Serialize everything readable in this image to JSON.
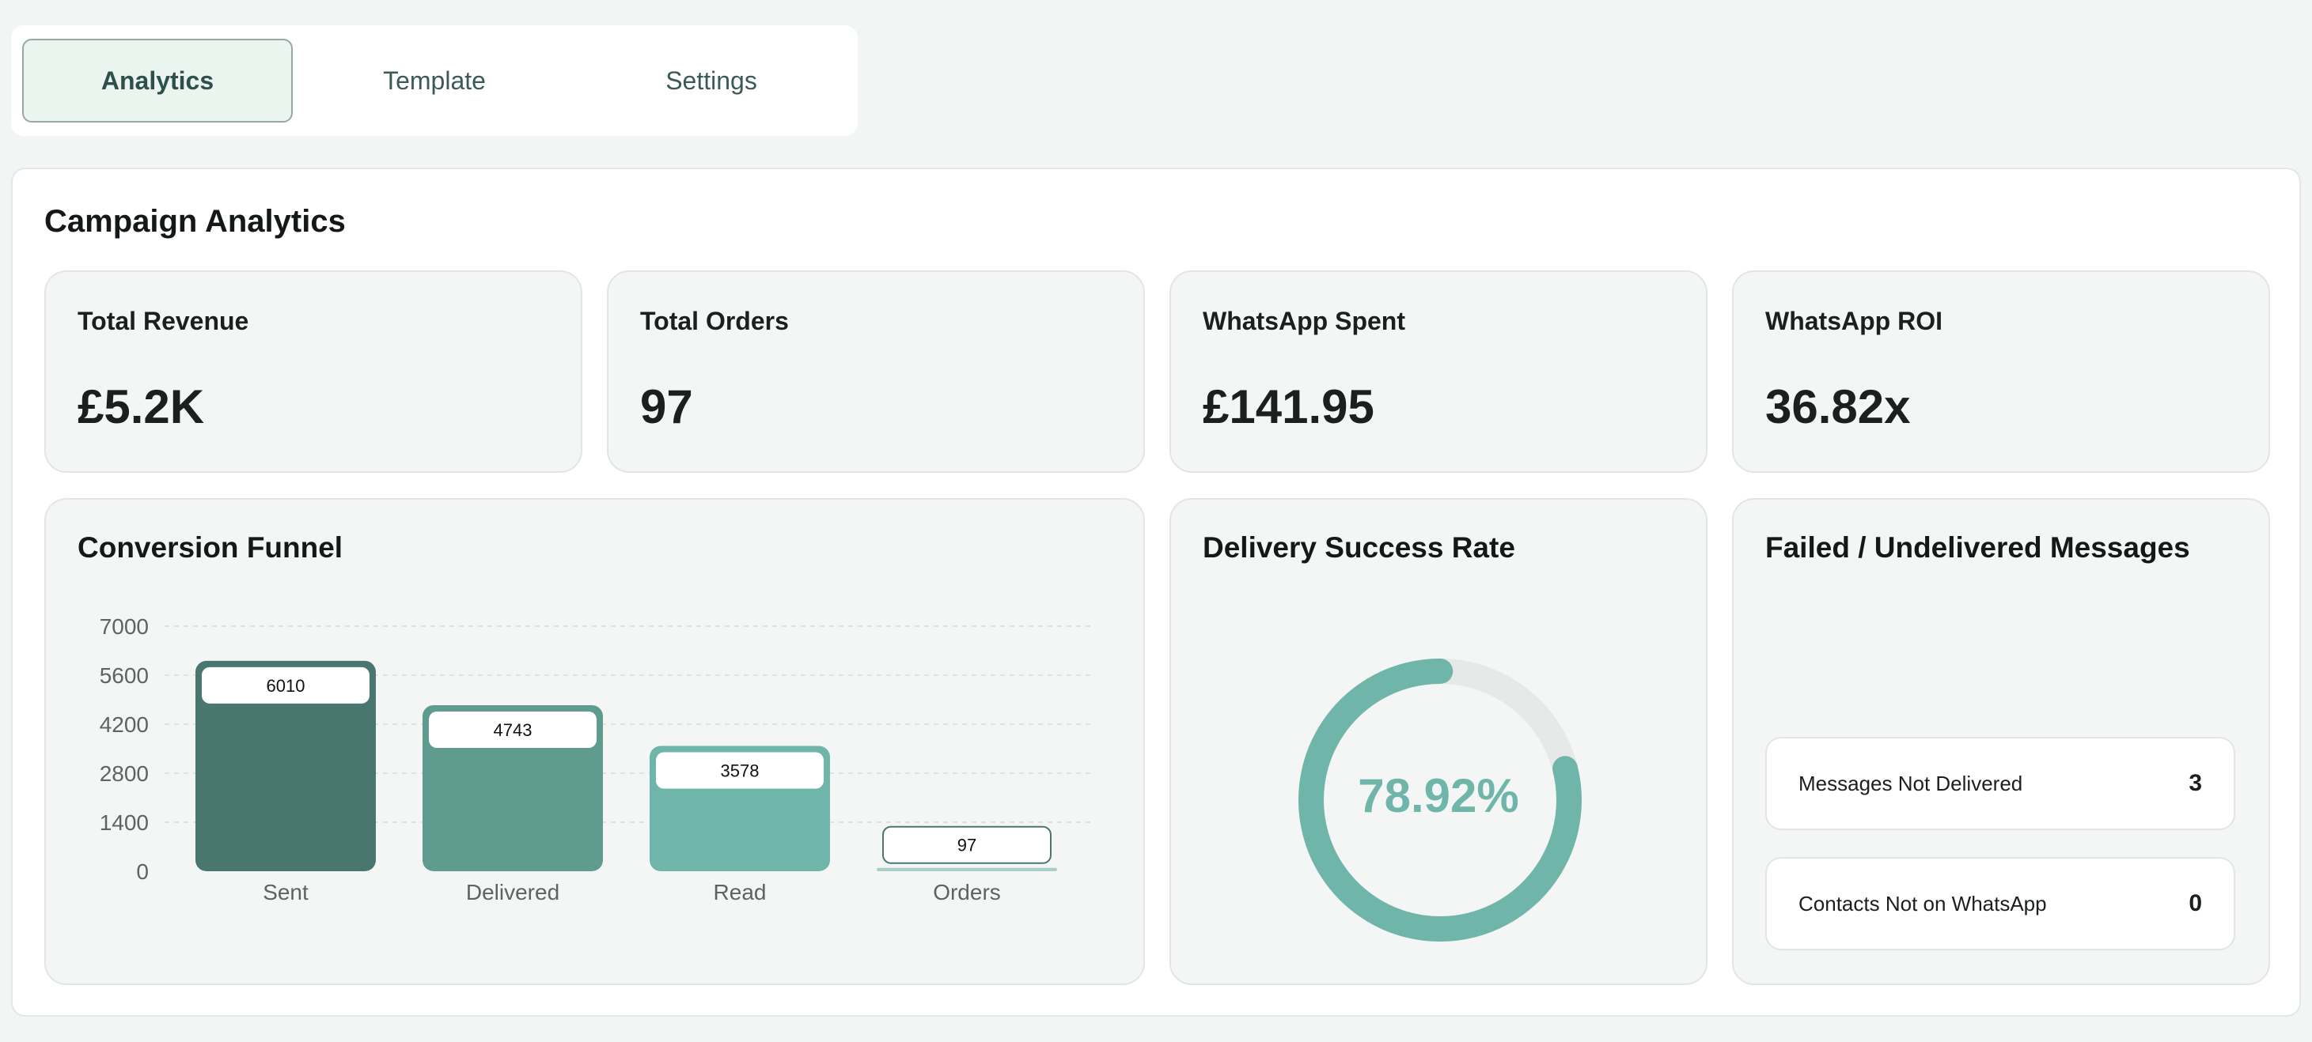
{
  "tabs": [
    {
      "label": "Analytics",
      "active": true
    },
    {
      "label": "Template",
      "active": false
    },
    {
      "label": "Settings",
      "active": false
    }
  ],
  "page_title": "Campaign Analytics",
  "stats": [
    {
      "label": "Total Revenue",
      "value": "£5.2K"
    },
    {
      "label": "Total Orders",
      "value": "97"
    },
    {
      "label": "WhatsApp Spent",
      "value": "£141.95"
    },
    {
      "label": "WhatsApp ROI",
      "value": "36.82x"
    }
  ],
  "funnel": {
    "title": "Conversion Funnel"
  },
  "delivery": {
    "title": "Delivery Success Rate",
    "value_text": "78.92%",
    "rate": 78.92
  },
  "failed": {
    "title": "Failed / Undelivered Messages",
    "rows": [
      {
        "label": "Messages Not Delivered",
        "value": "3"
      },
      {
        "label": "Contacts Not on WhatsApp",
        "value": "0"
      }
    ]
  },
  "colors": {
    "accent": "#70b5a9",
    "bar_sent": "#4a7670",
    "bar_delivered": "#5f9b8f",
    "bar_read": "#70b5a9",
    "bar_orders": "#a9cfc7",
    "donut_track": "#e7e9e8"
  },
  "chart_data": {
    "type": "bar",
    "categories": [
      "Sent",
      "Delivered",
      "Read",
      "Orders"
    ],
    "values": [
      6010,
      4743,
      3578,
      97
    ],
    "yticks": [
      0,
      1400,
      2800,
      4200,
      5600,
      7000
    ],
    "ylim": [
      0,
      7000
    ],
    "grid": true
  }
}
